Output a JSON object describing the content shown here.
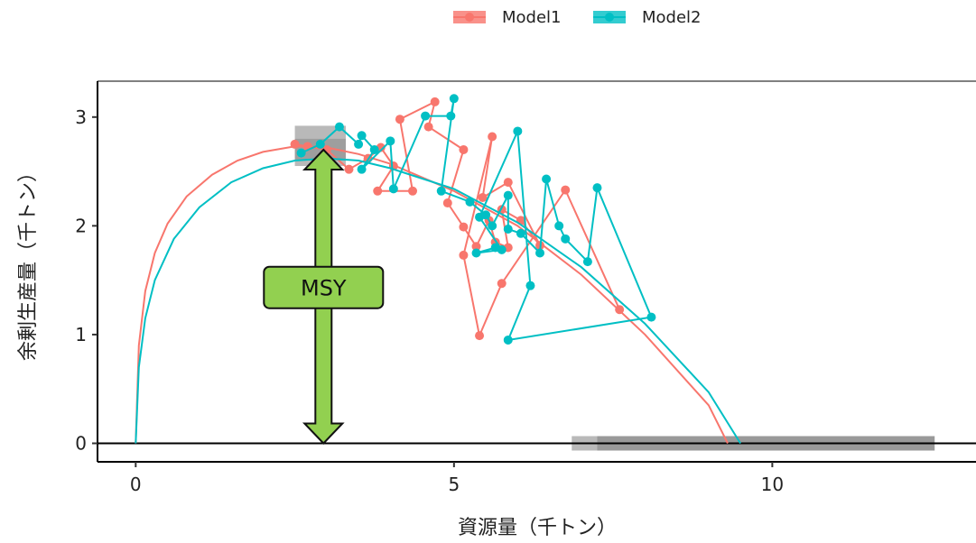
{
  "chart_data": {
    "type": "line",
    "title": "",
    "xlabel": "資源量（千トン）",
    "ylabel": "余剰生産量（千トン）",
    "xlim": [
      -0.6,
      13.2
    ],
    "ylim": [
      -0.17,
      3.33
    ],
    "x_ticks": [
      0,
      5,
      10
    ],
    "y_ticks": [
      0,
      1,
      2,
      3
    ],
    "legend": {
      "placement": "top"
    },
    "msy_label": "MSY",
    "msy_arrow": {
      "x": 2.95,
      "y_from": 0.0,
      "y_to": 2.7
    },
    "reference_line_y": 0,
    "series": [
      {
        "name": "Model1",
        "color": "#F8766D",
        "curve": [
          [
            0.0,
            0.0
          ],
          [
            0.05,
            0.9
          ],
          [
            0.15,
            1.4
          ],
          [
            0.3,
            1.75
          ],
          [
            0.5,
            2.02
          ],
          [
            0.8,
            2.27
          ],
          [
            1.2,
            2.47
          ],
          [
            1.6,
            2.6
          ],
          [
            2.0,
            2.68
          ],
          [
            2.5,
            2.73
          ],
          [
            3.0,
            2.72
          ],
          [
            3.5,
            2.66
          ],
          [
            4.0,
            2.57
          ],
          [
            5.0,
            2.32
          ],
          [
            6.0,
            2.0
          ],
          [
            7.0,
            1.55
          ],
          [
            8.0,
            1.0
          ],
          [
            9.0,
            0.35
          ],
          [
            9.3,
            0.0
          ]
        ],
        "points": [
          [
            2.5,
            2.75
          ],
          [
            2.7,
            2.73
          ],
          [
            3.0,
            2.7
          ],
          [
            3.35,
            2.52
          ],
          [
            3.65,
            2.62
          ],
          [
            3.85,
            2.72
          ],
          [
            4.05,
            2.55
          ],
          [
            3.8,
            2.32
          ],
          [
            4.35,
            2.32
          ],
          [
            4.15,
            2.98
          ],
          [
            4.7,
            3.14
          ],
          [
            4.6,
            2.91
          ],
          [
            5.15,
            2.7
          ],
          [
            4.9,
            2.21
          ],
          [
            5.15,
            1.99
          ],
          [
            5.35,
            1.81
          ],
          [
            5.55,
            2.05
          ],
          [
            5.65,
            1.85
          ],
          [
            5.85,
            1.8
          ],
          [
            5.75,
            2.15
          ],
          [
            6.05,
            2.05
          ],
          [
            6.35,
            1.82
          ],
          [
            5.85,
            2.4
          ],
          [
            5.45,
            2.26
          ],
          [
            5.6,
            2.82
          ],
          [
            5.15,
            1.73
          ],
          [
            5.4,
            0.99
          ],
          [
            5.75,
            1.47
          ],
          [
            6.75,
            2.33
          ],
          [
            7.6,
            1.23
          ]
        ]
      },
      {
        "name": "Model2",
        "color": "#00BFC4",
        "curve": [
          [
            0.0,
            0.0
          ],
          [
            0.05,
            0.7
          ],
          [
            0.15,
            1.15
          ],
          [
            0.3,
            1.5
          ],
          [
            0.6,
            1.88
          ],
          [
            1.0,
            2.17
          ],
          [
            1.5,
            2.4
          ],
          [
            2.0,
            2.53
          ],
          [
            2.5,
            2.6
          ],
          [
            3.0,
            2.62
          ],
          [
            3.5,
            2.6
          ],
          [
            4.0,
            2.53
          ],
          [
            5.0,
            2.34
          ],
          [
            6.0,
            2.03
          ],
          [
            7.0,
            1.62
          ],
          [
            8.0,
            1.1
          ],
          [
            9.0,
            0.47
          ],
          [
            9.5,
            0.0
          ]
        ],
        "points": [
          [
            2.6,
            2.67
          ],
          [
            2.9,
            2.75
          ],
          [
            3.2,
            2.91
          ],
          [
            3.5,
            2.75
          ],
          [
            3.55,
            2.83
          ],
          [
            3.75,
            2.7
          ],
          [
            3.55,
            2.52
          ],
          [
            4.0,
            2.78
          ],
          [
            4.05,
            2.34
          ],
          [
            4.55,
            3.01
          ],
          [
            4.95,
            3.01
          ],
          [
            5.0,
            3.17
          ],
          [
            4.8,
            2.32
          ],
          [
            5.25,
            2.22
          ],
          [
            5.5,
            2.1
          ],
          [
            5.6,
            2.0
          ],
          [
            5.85,
            2.28
          ],
          [
            5.85,
            1.97
          ],
          [
            6.05,
            1.93
          ],
          [
            6.35,
            1.75
          ],
          [
            6.45,
            2.43
          ],
          [
            6.65,
            2.0
          ],
          [
            6.75,
            1.88
          ],
          [
            7.1,
            1.67
          ],
          [
            7.25,
            2.35
          ],
          [
            8.1,
            1.16
          ],
          [
            5.85,
            0.95
          ],
          [
            6.2,
            1.45
          ],
          [
            6.0,
            2.87
          ],
          [
            5.4,
            2.08
          ],
          [
            5.75,
            1.78
          ],
          [
            5.35,
            1.75
          ],
          [
            5.65,
            1.8
          ]
        ]
      }
    ]
  }
}
